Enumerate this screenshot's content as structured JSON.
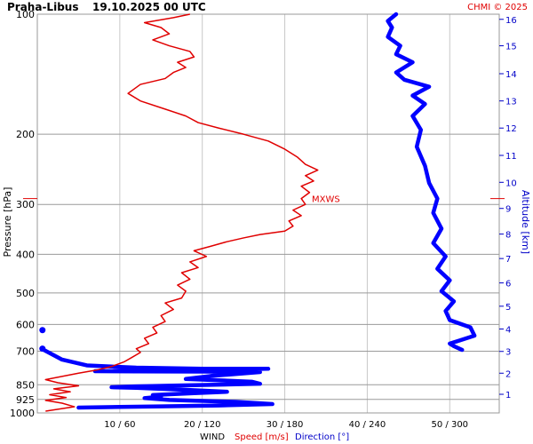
{
  "chart_data": {
    "type": "line",
    "title": "Praha-Libus",
    "subtitle": "19.10.2025 00 UTC",
    "credit": "CHMI © 2025",
    "ylabel_left": "Pressure [hPa]",
    "ylabel_right": "Altitude [km]",
    "x_footer": {
      "wind": "WIND",
      "speed": "Speed [m/s]",
      "direction": "Direction [°]"
    },
    "pressure_scale": "log",
    "ylim_hpa": [
      1000,
      100
    ],
    "pressure_ticks": [
      "100",
      "200",
      "300",
      "400",
      "500",
      "600",
      "700",
      "850",
      "925",
      "1000"
    ],
    "altitude_ticks": [
      "1",
      "2",
      "3",
      "4",
      "5",
      "6",
      "7",
      "8",
      "9",
      "10",
      "11",
      "12",
      "13",
      "14",
      "15",
      "16"
    ],
    "xlim_speed_ms": [
      0,
      56
    ],
    "x_ticks": [
      "10 / 60",
      "20 / 120",
      "30 / 180",
      "40 / 240",
      "50 / 300"
    ],
    "mxws_label": "MXWS",
    "mxws_pressure_hpa": 290,
    "colors": {
      "speed": "#e00000",
      "direction": "#0000ff",
      "grid": "#999999",
      "right_axis": "#0000c8"
    },
    "grid": true,
    "series": [
      {
        "name": "Speed [m/s]",
        "points": [
          [
            1,
            990
          ],
          [
            4.5,
            965
          ],
          [
            3,
            945
          ],
          [
            1,
            930
          ],
          [
            3.5,
            915
          ],
          [
            1.5,
            900
          ],
          [
            4,
            885
          ],
          [
            2,
            870
          ],
          [
            5,
            855
          ],
          [
            2.5,
            840
          ],
          [
            1,
            825
          ],
          [
            3,
            810
          ],
          [
            5,
            795
          ],
          [
            7,
            782
          ],
          [
            9,
            765
          ],
          [
            10.5,
            745
          ],
          [
            11.5,
            725
          ],
          [
            12.5,
            705
          ],
          [
            12,
            690
          ],
          [
            13.5,
            670
          ],
          [
            13,
            650
          ],
          [
            14.5,
            630
          ],
          [
            14,
            610
          ],
          [
            15.5,
            590
          ],
          [
            15,
            570
          ],
          [
            16.5,
            550
          ],
          [
            15.5,
            530
          ],
          [
            17.5,
            515
          ],
          [
            18,
            495
          ],
          [
            17,
            478
          ],
          [
            18.5,
            462
          ],
          [
            17.5,
            445
          ],
          [
            19.5,
            432
          ],
          [
            18.5,
            418
          ],
          [
            20.5,
            405
          ],
          [
            19,
            392
          ],
          [
            21,
            382
          ],
          [
            23,
            372
          ],
          [
            25,
            364
          ],
          [
            27,
            357
          ],
          [
            30,
            350
          ],
          [
            31,
            340
          ],
          [
            30.5,
            330
          ],
          [
            32,
            320
          ],
          [
            31,
            310
          ],
          [
            32.5,
            300
          ],
          [
            32,
            290
          ],
          [
            33,
            280
          ],
          [
            32,
            270
          ],
          [
            33.5,
            262
          ],
          [
            32.5,
            254
          ],
          [
            34,
            246
          ],
          [
            32.5,
            238
          ],
          [
            31.5,
            228
          ],
          [
            30,
            218
          ],
          [
            28,
            208
          ],
          [
            25,
            200
          ],
          [
            22,
            193
          ],
          [
            19.5,
            187
          ],
          [
            18,
            180
          ],
          [
            15.5,
            173
          ],
          [
            12.5,
            165
          ],
          [
            11,
            158
          ],
          [
            12.5,
            150
          ],
          [
            15.5,
            145
          ],
          [
            16.5,
            140
          ],
          [
            18,
            136
          ],
          [
            17,
            132
          ],
          [
            19,
            128
          ],
          [
            18.5,
            124
          ],
          [
            16,
            120
          ],
          [
            14,
            116
          ],
          [
            16,
            112
          ],
          [
            15,
            108
          ],
          [
            13,
            105
          ],
          [
            16.5,
            102
          ],
          [
            18.5,
            100
          ]
        ]
      },
      {
        "name": "Direction [°]",
        "points": [
          [
            0.5,
            690
          ],
          [
            3,
            735
          ],
          [
            6,
            760
          ],
          [
            12,
            770
          ],
          [
            20,
            775
          ],
          [
            28,
            775
          ],
          [
            20,
            780
          ],
          [
            12,
            783
          ],
          [
            7,
            786
          ],
          [
            12,
            787
          ],
          [
            21,
            788
          ],
          [
            27,
            790
          ],
          [
            21,
            808
          ],
          [
            18,
            822
          ],
          [
            26,
            835
          ],
          [
            27,
            845
          ],
          [
            19,
            852
          ],
          [
            12,
            858
          ],
          [
            9,
            862
          ],
          [
            12,
            865
          ],
          [
            18,
            875
          ],
          [
            23,
            885
          ],
          [
            19,
            892
          ],
          [
            14,
            902
          ],
          [
            15,
            910
          ],
          [
            13,
            918
          ],
          [
            16,
            928
          ],
          [
            24,
            938
          ],
          [
            28.5,
            950
          ],
          [
            22,
            958
          ],
          [
            15,
            963
          ],
          [
            10,
            966
          ],
          [
            5,
            970
          ]
        ],
        "extra": [
          {
            "x": 51.5,
            "hpa": 695
          },
          {
            "x": 50.5,
            "hpa": 680
          },
          {
            "x": 50,
            "hpa": 670
          },
          {
            "x": 51,
            "hpa": 660
          },
          {
            "x": 53,
            "hpa": 640
          },
          {
            "x": 52.5,
            "hpa": 610
          },
          {
            "x": 50,
            "hpa": 585
          },
          {
            "x": 49.5,
            "hpa": 555
          },
          {
            "x": 50.5,
            "hpa": 525
          },
          {
            "x": 49,
            "hpa": 495
          },
          {
            "x": 50,
            "hpa": 465
          },
          {
            "x": 48.5,
            "hpa": 435
          },
          {
            "x": 49.5,
            "hpa": 405
          },
          {
            "x": 48,
            "hpa": 375
          },
          {
            "x": 49,
            "hpa": 345
          },
          {
            "x": 48,
            "hpa": 315
          },
          {
            "x": 48.5,
            "hpa": 290
          },
          {
            "x": 47.5,
            "hpa": 265
          },
          {
            "x": 47,
            "hpa": 240
          },
          {
            "x": 46,
            "hpa": 215
          },
          {
            "x": 46.5,
            "hpa": 195
          },
          {
            "x": 45.5,
            "hpa": 180
          },
          {
            "x": 47,
            "hpa": 168
          },
          {
            "x": 45.5,
            "hpa": 160
          },
          {
            "x": 47.5,
            "hpa": 152
          },
          {
            "x": 44.5,
            "hpa": 146
          },
          {
            "x": 43.5,
            "hpa": 140
          },
          {
            "x": 45.5,
            "hpa": 132
          },
          {
            "x": 43.5,
            "hpa": 126
          },
          {
            "x": 44,
            "hpa": 120
          },
          {
            "x": 42.5,
            "hpa": 114
          },
          {
            "x": 43,
            "hpa": 108
          },
          {
            "x": 42.5,
            "hpa": 104
          },
          {
            "x": 43.5,
            "hpa": 100
          }
        ],
        "low_points": [
          [
            0.3,
            620
          ],
          [
            0.3,
            690
          ]
        ]
      }
    ]
  }
}
